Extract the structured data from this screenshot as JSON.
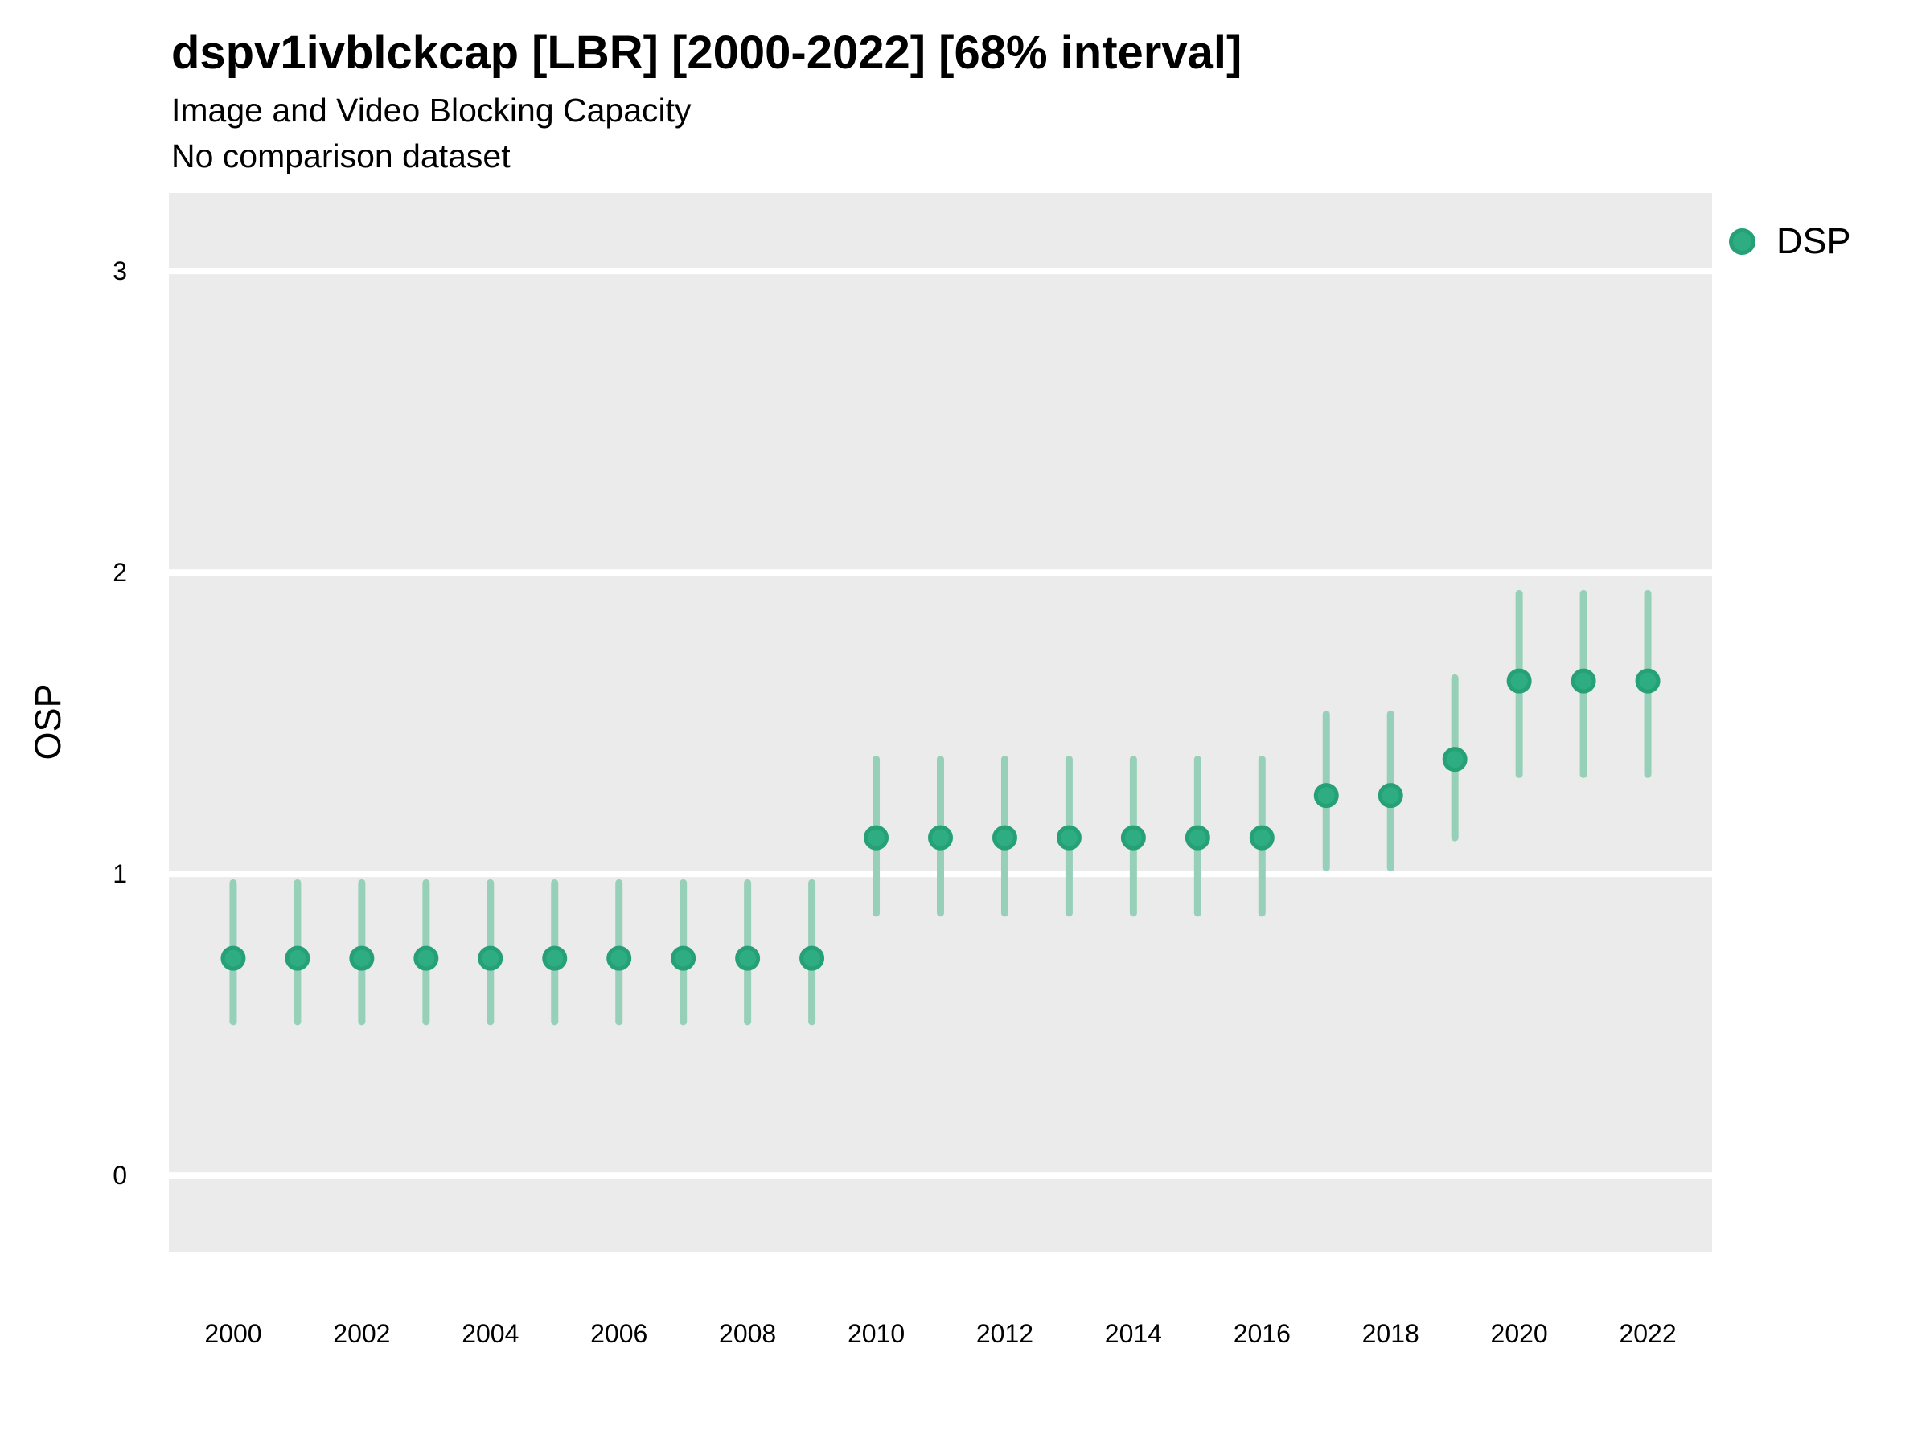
{
  "header": {
    "title": "dspv1ivblckcap [LBR] [2000-2022] [68% interval]",
    "subtitle": "Image and Video Blocking Capacity",
    "note": "No comparison dataset"
  },
  "legend": {
    "label": "DSP"
  },
  "y_axis": {
    "label": "OSP"
  },
  "colors": {
    "panel_bg": "#EBEBEB",
    "gridline": "#FFFFFF",
    "point_fill": "#2EAC82",
    "point_stroke": "#26A077",
    "interval_bar": "#97D0B8",
    "axis_text": "#000000"
  },
  "chart_data": {
    "type": "pointrange",
    "title": "dspv1ivblckcap [LBR] [2000-2022] [68% interval]",
    "subtitle": "Image and Video Blocking Capacity",
    "note": "No comparison dataset",
    "interval": "68%",
    "ylabel": "OSP",
    "xlabel": "",
    "legend_position": "right",
    "grid": "horizontal-major-only",
    "xlim": [
      1999,
      2023
    ],
    "ylim": [
      -0.253,
      3.259
    ],
    "xticks": [
      2000,
      2002,
      2004,
      2006,
      2008,
      2010,
      2012,
      2014,
      2016,
      2018,
      2020,
      2022
    ],
    "yticks": [
      0,
      1,
      2,
      3
    ],
    "x": [
      2000,
      2001,
      2002,
      2003,
      2004,
      2005,
      2006,
      2007,
      2008,
      2009,
      2010,
      2011,
      2012,
      2013,
      2014,
      2015,
      2016,
      2017,
      2018,
      2019,
      2020,
      2021,
      2022
    ],
    "series": [
      {
        "name": "DSP",
        "mid": [
          0.72,
          0.72,
          0.72,
          0.72,
          0.72,
          0.72,
          0.72,
          0.72,
          0.72,
          0.72,
          1.12,
          1.12,
          1.12,
          1.12,
          1.12,
          1.12,
          1.12,
          1.26,
          1.26,
          1.38,
          1.64,
          1.64,
          1.64
        ],
        "lo": [
          0.51,
          0.51,
          0.51,
          0.51,
          0.51,
          0.51,
          0.51,
          0.51,
          0.51,
          0.51,
          0.87,
          0.87,
          0.87,
          0.87,
          0.87,
          0.87,
          0.87,
          1.02,
          1.02,
          1.12,
          1.33,
          1.33,
          1.33
        ],
        "hi": [
          0.97,
          0.97,
          0.97,
          0.97,
          0.97,
          0.97,
          0.97,
          0.97,
          0.97,
          0.97,
          1.38,
          1.38,
          1.38,
          1.38,
          1.38,
          1.38,
          1.38,
          1.53,
          1.53,
          1.65,
          1.93,
          1.93,
          1.93
        ]
      }
    ]
  }
}
